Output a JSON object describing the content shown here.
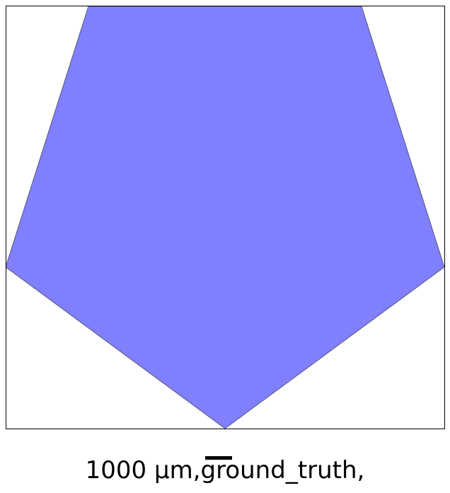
{
  "figure": {
    "shape_color": "#8080ff",
    "edge_color": "#555577",
    "frame_color": "#000000",
    "background": "#ffffff"
  },
  "scale_bar": {
    "color": "#000000"
  },
  "caption": {
    "text": "1000 µm,ground_truth,"
  }
}
